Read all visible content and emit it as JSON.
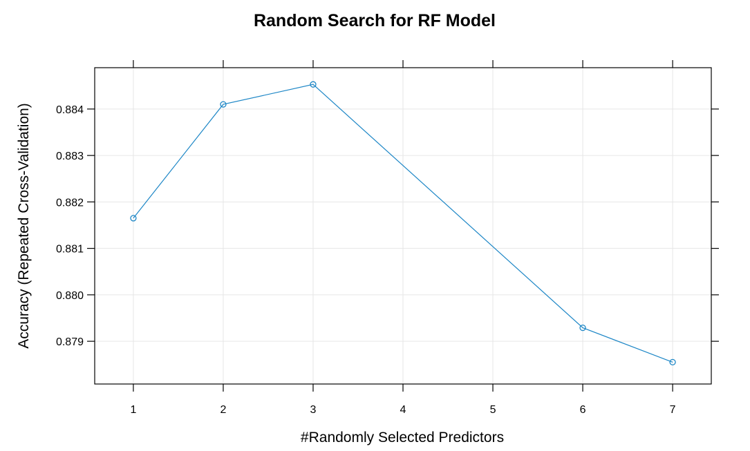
{
  "chart_data": {
    "type": "line",
    "title": "Random Search for RF Model",
    "xlabel": "#Randomly Selected Predictors",
    "ylabel": "Accuracy (Repeated Cross-Validation)",
    "x": [
      1,
      2,
      3,
      6,
      7
    ],
    "y": [
      0.88165,
      0.8841,
      0.88453,
      0.87929,
      0.87855
    ],
    "xlim": [
      0.57,
      7.43
    ],
    "ylim": [
      0.87808,
      0.88489
    ],
    "xticks": [
      1,
      2,
      3,
      4,
      5,
      6,
      7
    ],
    "xtick_labels": [
      "1",
      "2",
      "3",
      "4",
      "5",
      "6",
      "7"
    ],
    "yticks": [
      0.879,
      0.88,
      0.881,
      0.882,
      0.883,
      0.884
    ],
    "ytick_labels": [
      "0.879",
      "0.880",
      "0.881",
      "0.882",
      "0.883",
      "0.884"
    ],
    "grid": true,
    "series_color": "#1c86c6",
    "marker": "open-circle"
  }
}
